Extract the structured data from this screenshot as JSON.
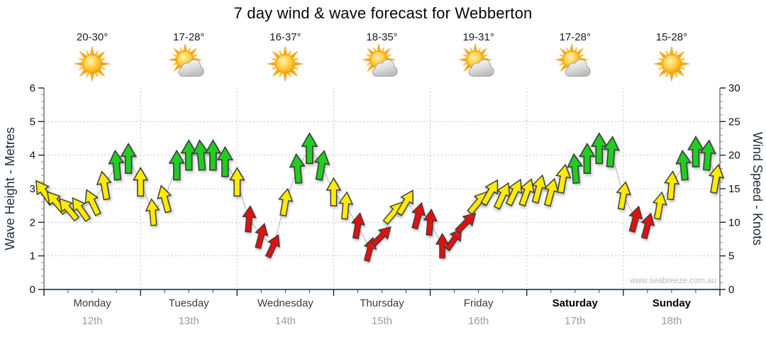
{
  "title": "7 day wind & wave forecast for Webberton",
  "watermark": "www.seabreeze.com.au",
  "days": [
    {
      "name": "Monday",
      "date": "12th",
      "temp": "20-30°",
      "icon": "sun",
      "bold": false
    },
    {
      "name": "Tuesday",
      "date": "13th",
      "temp": "17-28°",
      "icon": "sun-cloud",
      "bold": false
    },
    {
      "name": "Wednesday",
      "date": "14th",
      "temp": "16-37°",
      "icon": "sun",
      "bold": false
    },
    {
      "name": "Thursday",
      "date": "15th",
      "temp": "18-35°",
      "icon": "sun-cloud",
      "bold": false
    },
    {
      "name": "Friday",
      "date": "16th",
      "temp": "19-31°",
      "icon": "sun-cloud",
      "bold": false
    },
    {
      "name": "Saturday",
      "date": "17th",
      "temp": "17-28°",
      "icon": "sun-cloud",
      "bold": true
    },
    {
      "name": "Sunday",
      "date": "18th",
      "temp": "15-28°",
      "icon": "sun",
      "bold": true
    }
  ],
  "colors": {
    "yellow": "#FFEB00",
    "green": "#22CC22",
    "red": "#E01111",
    "axis_line": "#2A5E82",
    "grid": "#c6c6c6",
    "arrow_outline": "#3a3a3a",
    "connector": "#b0b0b0"
  },
  "chart_data": {
    "type": "line",
    "subtype": "wind-direction-arrows",
    "title": "7 day wind & wave forecast for Webberton",
    "x_axis": {
      "categories": [
        "Monday 12th",
        "Tuesday 13th",
        "Wednesday 14th",
        "Thursday 15th",
        "Friday 16th",
        "Saturday 17th",
        "Sunday 18th"
      ],
      "range_days": [
        0,
        7
      ],
      "grid": "dotted-vertical-at-day-boundaries"
    },
    "y_left": {
      "title": "Wave Height - Metres",
      "range": [
        0,
        6
      ],
      "ticks": [
        0,
        1,
        2,
        3,
        4,
        5,
        6
      ]
    },
    "y_right": {
      "title": "Wind Speed - Knots",
      "range": [
        0,
        30
      ],
      "ticks": [
        0,
        5,
        10,
        15,
        20,
        25,
        30
      ]
    },
    "point_format": [
      "day_offset",
      "knots",
      "direction_deg_clockwise_from_up",
      "color"
    ],
    "series": [
      {
        "name": "wind-speed-and-direction",
        "points": [
          [
            0,
            14.5,
            -35,
            "yellow"
          ],
          [
            0.125,
            13,
            -40,
            "yellow"
          ],
          [
            0.25,
            12,
            -40,
            "yellow"
          ],
          [
            0.375,
            12,
            -35,
            "yellow"
          ],
          [
            0.5,
            13,
            -25,
            "yellow"
          ],
          [
            0.625,
            15.5,
            -10,
            "yellow"
          ],
          [
            0.75,
            18.5,
            -5,
            "green"
          ],
          [
            0.875,
            19.5,
            0,
            "green"
          ],
          [
            1,
            16,
            0,
            "yellow"
          ],
          [
            1.125,
            11.5,
            -5,
            "yellow"
          ],
          [
            1.25,
            13.5,
            -15,
            "yellow"
          ],
          [
            1.375,
            18.5,
            0,
            "green"
          ],
          [
            1.5,
            20,
            0,
            "green"
          ],
          [
            1.625,
            20,
            -5,
            "green"
          ],
          [
            1.75,
            20,
            0,
            "green"
          ],
          [
            1.875,
            19,
            0,
            "green"
          ],
          [
            2,
            16,
            0,
            "yellow"
          ],
          [
            2.125,
            10.5,
            5,
            "red"
          ],
          [
            2.25,
            8,
            15,
            "red"
          ],
          [
            2.375,
            6.5,
            25,
            "red"
          ],
          [
            2.5,
            13,
            10,
            "yellow"
          ],
          [
            2.625,
            18,
            -5,
            "green"
          ],
          [
            2.75,
            21,
            0,
            "green"
          ],
          [
            2.875,
            18.5,
            10,
            "green"
          ],
          [
            3,
            14.5,
            0,
            "yellow"
          ],
          [
            3.125,
            12.5,
            5,
            "yellow"
          ],
          [
            3.25,
            9.5,
            10,
            "red"
          ],
          [
            3.375,
            6,
            15,
            "red"
          ],
          [
            3.5,
            8,
            45,
            "red"
          ],
          [
            3.625,
            11.5,
            40,
            "yellow"
          ],
          [
            3.75,
            13,
            30,
            "yellow"
          ],
          [
            3.875,
            11,
            15,
            "red"
          ],
          [
            4,
            10,
            5,
            "red"
          ],
          [
            4.125,
            6.5,
            0,
            "red"
          ],
          [
            4.25,
            7.5,
            35,
            "red"
          ],
          [
            4.375,
            10,
            45,
            "red"
          ],
          [
            4.5,
            13,
            40,
            "yellow"
          ],
          [
            4.625,
            14.5,
            30,
            "yellow"
          ],
          [
            4.75,
            14,
            25,
            "yellow"
          ],
          [
            4.875,
            14.5,
            25,
            "yellow"
          ],
          [
            5,
            14.5,
            20,
            "yellow"
          ],
          [
            5.125,
            15,
            15,
            "yellow"
          ],
          [
            5.25,
            14.5,
            15,
            "yellow"
          ],
          [
            5.375,
            16.5,
            10,
            "yellow"
          ],
          [
            5.5,
            18,
            -5,
            "green"
          ],
          [
            5.625,
            19.5,
            0,
            "green"
          ],
          [
            5.75,
            21,
            0,
            "green"
          ],
          [
            5.875,
            20.5,
            5,
            "green"
          ],
          [
            6,
            14,
            10,
            "yellow"
          ],
          [
            6.125,
            10.5,
            15,
            "red"
          ],
          [
            6.25,
            9.5,
            15,
            "red"
          ],
          [
            6.375,
            12.5,
            10,
            "yellow"
          ],
          [
            6.5,
            15.5,
            5,
            "yellow"
          ],
          [
            6.625,
            18.5,
            -5,
            "green"
          ],
          [
            6.75,
            20.5,
            0,
            "green"
          ],
          [
            6.875,
            20,
            5,
            "green"
          ],
          [
            6.96,
            16.5,
            10,
            "yellow"
          ]
        ]
      }
    ],
    "annotations": [
      "www.seabreeze.com.au"
    ]
  }
}
